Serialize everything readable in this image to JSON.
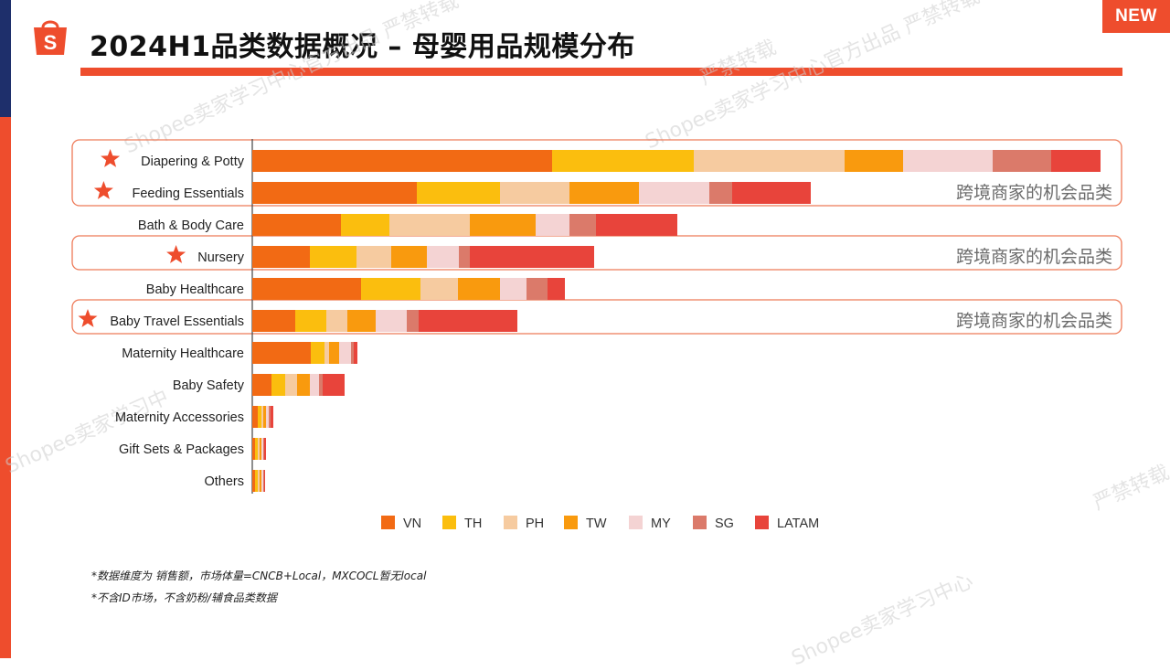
{
  "header": {
    "title": "2024H1品类数据概况 – 母婴用品规模分布",
    "badge": "NEW"
  },
  "brand": {
    "primary": "#ee4d2d",
    "navy": "#1e2f6b",
    "logo": "shopee-bag-icon"
  },
  "watermarks": {
    "w1": "严禁转载",
    "w2": "Shopee卖家学习中心官方出品 严禁转载",
    "w3": "Shopee卖家学习中心官方出品 严禁转载",
    "w4": "严禁转载",
    "w5": "Shopee卖家学习中",
    "w6": "Shopee卖家学习中心"
  },
  "chart_data": {
    "type": "bar",
    "orientation": "horizontal",
    "stacked": true,
    "categories": [
      "Diapering & Potty",
      "Feeding Essentials",
      "Bath & Body Care",
      "Nursery",
      "Baby Healthcare",
      "Baby Travel Essentials",
      "Maternity Healthcare",
      "Baby Safety",
      "Maternity Accessories",
      "Gift Sets & Packages",
      "Others"
    ],
    "starred": [
      true,
      true,
      false,
      true,
      false,
      true,
      false,
      false,
      false,
      false,
      false
    ],
    "highlight_label": "跨境商家的机会品类",
    "series": [
      {
        "name": "VN",
        "color": "#f26a14",
        "values": [
          328,
          180,
          97,
          63,
          119,
          47,
          64,
          21,
          6,
          3,
          3
        ]
      },
      {
        "name": "TH",
        "color": "#fbbe0e",
        "values": [
          155,
          91,
          53,
          51,
          65,
          34,
          15,
          15,
          4,
          3,
          3
        ]
      },
      {
        "name": "PH",
        "color": "#f6cba0",
        "values": [
          165,
          76,
          88,
          38,
          41,
          23,
          5,
          13,
          2,
          2,
          2
        ]
      },
      {
        "name": "TW",
        "color": "#f99a0e",
        "values": [
          64,
          76,
          72,
          39,
          46,
          31,
          11,
          14,
          3,
          2,
          2
        ]
      },
      {
        "name": "MY",
        "color": "#f4d3d3",
        "values": [
          98,
          77,
          37,
          35,
          29,
          34,
          13,
          10,
          3,
          2,
          2
        ]
      },
      {
        "name": "SG",
        "color": "#db7a6a",
        "values": [
          64,
          25,
          29,
          12,
          23,
          13,
          3,
          4,
          2,
          1,
          1
        ]
      },
      {
        "name": "LATAM",
        "color": "#e8443b",
        "values": [
          54,
          86,
          89,
          136,
          19,
          108,
          4,
          24,
          3,
          2,
          1
        ]
      }
    ],
    "xlim": [
      0,
      930
    ],
    "grid": false,
    "legend_position": "bottom"
  },
  "footnotes": [
    "*数据维度为 销售额，市场体量=CNCB+Local，MXCOCL暂无local",
    "*不含ID市场，不含奶粉/辅食品类数据"
  ]
}
